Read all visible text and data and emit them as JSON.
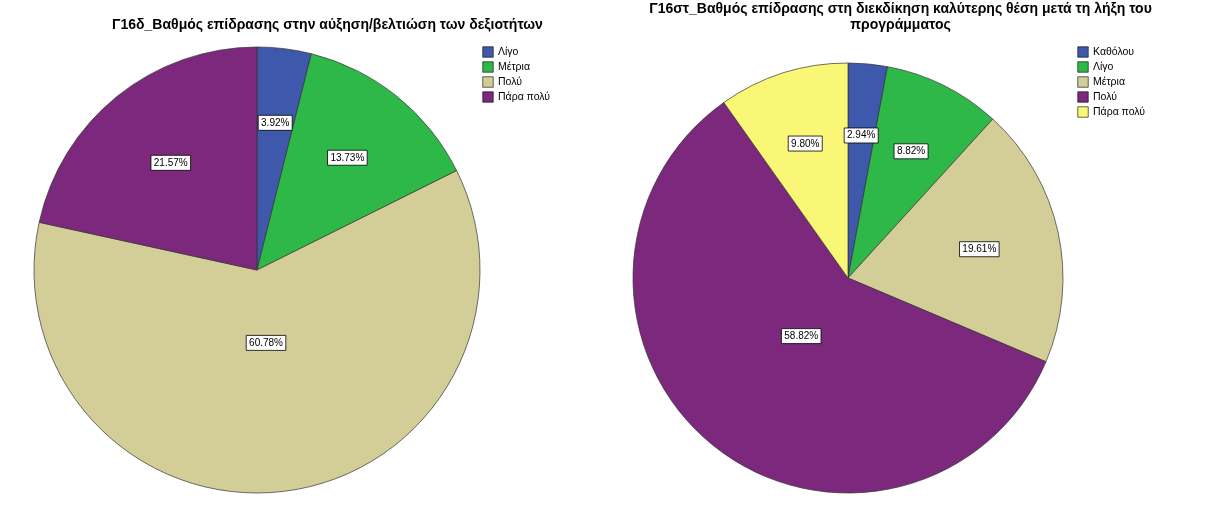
{
  "chart_data": [
    {
      "type": "pie",
      "title": "Γ16δ_Βαθμός επίδρασης στην αύξηση/βελτιώση των δεξιοτήτων",
      "categories": [
        "Λίγο",
        "Μέτρια",
        "Πολύ",
        "Πάρα πολύ"
      ],
      "values": [
        3.92,
        13.73,
        60.78,
        21.57
      ],
      "colors": [
        "#3e58ac",
        "#2eb848",
        "#d3ce97",
        "#7c287c"
      ],
      "value_labels": [
        "3.92%",
        "13.73%",
        "60.78%",
        "21.57%"
      ],
      "legend": "top right"
    },
    {
      "type": "pie",
      "title": "Γ16στ_Βαθμός επίδρασης στη διεκδίκηση καλύτερης θέση μετά τη λήξη του προγράμματος",
      "categories": [
        "Καθόλου",
        "Λίγο",
        "Μέτρια",
        "Πολύ",
        "Πάρα πολύ"
      ],
      "values": [
        2.94,
        8.82,
        19.61,
        58.82,
        9.8
      ],
      "colors": [
        "#3e58ac",
        "#2eb848",
        "#d3ce97",
        "#7c287c",
        "#fbf776"
      ],
      "value_labels": [
        "2.94%",
        "8.82%",
        "19.61%",
        "58.82%",
        "9.80%"
      ],
      "legend": "top right"
    }
  ]
}
